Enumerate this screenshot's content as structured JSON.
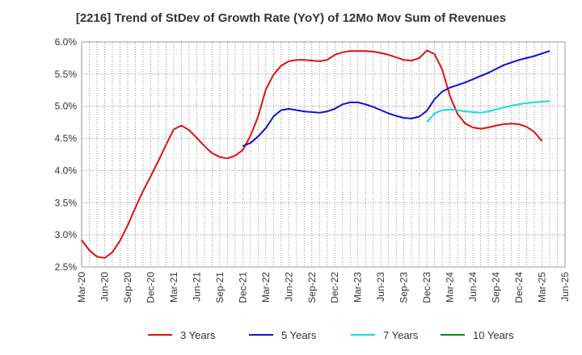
{
  "chart_data": {
    "type": "line",
    "title": "[2216]  Trend of StDev of Growth Rate (YoY) of 12Mo Mov Sum of Revenues",
    "xlabel": "",
    "ylabel": "",
    "ylim": [
      2.5,
      6.0
    ],
    "y_ticks": [
      2.5,
      3.0,
      3.5,
      4.0,
      4.5,
      5.0,
      5.5,
      6.0
    ],
    "y_tick_labels": [
      "2.5%",
      "3.0%",
      "3.5%",
      "4.0%",
      "4.5%",
      "5.0%",
      "5.5%",
      "6.0%"
    ],
    "x_start_index": 0,
    "x_end_index": 63,
    "x_ticks": [
      "Mar-20",
      "Jun-20",
      "Sep-20",
      "Dec-20",
      "Mar-21",
      "Jun-21",
      "Sep-21",
      "Dec-21",
      "Mar-22",
      "Jun-22",
      "Sep-22",
      "Dec-22",
      "Mar-23",
      "Jun-23",
      "Sep-23",
      "Dec-23",
      "Mar-24",
      "Jun-24",
      "Sep-24",
      "Dec-24",
      "Mar-25",
      "Jun-25"
    ],
    "grid": true,
    "legend_position": "bottom",
    "series": [
      {
        "name": "3 Years",
        "color": "#dd1111",
        "start_index": 0,
        "values": [
          2.92,
          2.76,
          2.66,
          2.64,
          2.73,
          2.91,
          3.15,
          3.42,
          3.68,
          3.91,
          4.15,
          4.4,
          4.64,
          4.7,
          4.63,
          4.51,
          4.38,
          4.27,
          4.21,
          4.19,
          4.23,
          4.32,
          4.54,
          4.84,
          5.26,
          5.49,
          5.63,
          5.7,
          5.72,
          5.72,
          5.71,
          5.7,
          5.72,
          5.8,
          5.84,
          5.86,
          5.86,
          5.86,
          5.85,
          5.83,
          5.8,
          5.76,
          5.72,
          5.71,
          5.75,
          5.87,
          5.81,
          5.57,
          5.16,
          4.88,
          4.73,
          4.67,
          4.65,
          4.67,
          4.7,
          4.72,
          4.73,
          4.72,
          4.68,
          4.6,
          4.46
        ]
      },
      {
        "name": "5 Years",
        "color": "#1111cc",
        "start_index": 21,
        "values": [
          4.38,
          4.43,
          4.53,
          4.66,
          4.84,
          4.94,
          4.96,
          4.94,
          4.92,
          4.91,
          4.9,
          4.92,
          4.96,
          5.03,
          5.06,
          5.06,
          5.03,
          4.99,
          4.94,
          4.89,
          4.85,
          4.82,
          4.81,
          4.84,
          4.93,
          5.11,
          5.23,
          5.29,
          5.33,
          5.37,
          5.42,
          5.47,
          5.52,
          5.58,
          5.64,
          5.68,
          5.72,
          5.75,
          5.78,
          5.82,
          5.86
        ]
      },
      {
        "name": "7 Years",
        "color": "#11dddd",
        "start_index": 45,
        "values": [
          4.75,
          4.89,
          4.94,
          4.95,
          4.94,
          4.92,
          4.91,
          4.9,
          4.92,
          4.95,
          4.98,
          5.01,
          5.03,
          5.05,
          5.06,
          5.07,
          5.08
        ]
      },
      {
        "name": "10 Years",
        "color": "#118811",
        "start_index": 0,
        "values": []
      }
    ]
  }
}
